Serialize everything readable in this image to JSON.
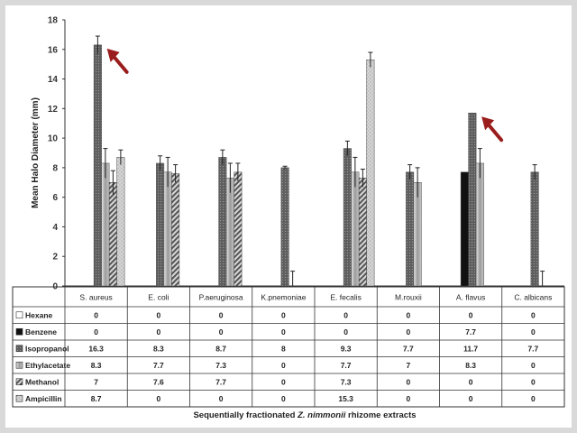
{
  "chart_data": {
    "type": "bar",
    "ylabel": "Mean Halo Diameter (mm)",
    "xlabel_parts": [
      "Sequentially fractionated ",
      "Z. nimmonii",
      " rhizome extracts"
    ],
    "ylim": [
      0,
      18
    ],
    "yticks": [
      0,
      2,
      4,
      6,
      8,
      10,
      12,
      14,
      16,
      18
    ],
    "categories": [
      "S. aureus",
      "E. coli",
      "P.aeruginosa",
      "K.pnemoniae",
      "E. fecalis",
      "M.rouxii",
      "A. flavus",
      "C. albicans"
    ],
    "series": [
      {
        "name": "Hexane",
        "values": [
          0,
          0,
          0,
          0,
          0,
          0,
          0,
          0
        ],
        "labels": [
          "0",
          "0",
          "0",
          "0",
          "0",
          "0",
          "0",
          "0"
        ],
        "color": "#ffffff"
      },
      {
        "name": "Benzene",
        "values": [
          0,
          0,
          0,
          0,
          0,
          0,
          7.7,
          0
        ],
        "labels": [
          "0",
          "0",
          "0",
          "0",
          "0",
          "0",
          "7.7",
          "0"
        ],
        "color": "#111111"
      },
      {
        "name": "Isopropanol",
        "values": [
          16.3,
          8.3,
          8.7,
          8,
          9.3,
          7.7,
          11.7,
          7.7
        ],
        "labels": [
          "16.3",
          "8.3",
          "8.7",
          "8",
          "9.3",
          "7.7",
          "11.7",
          "7.7"
        ],
        "color": "#6e6e6e"
      },
      {
        "name": "Ethylacetate",
        "values": [
          8.3,
          7.7,
          7.3,
          0,
          7.7,
          7,
          8.3,
          0
        ],
        "labels": [
          "8.3",
          "7.7",
          "7.3",
          "0",
          "7.7",
          "7",
          "8.3",
          "0"
        ],
        "color": "#a8a8a8"
      },
      {
        "name": "Methanol",
        "values": [
          7,
          7.6,
          7.7,
          0,
          7.3,
          0,
          0,
          0
        ],
        "labels": [
          "7",
          "7.6",
          "7.7",
          "0",
          "7.3",
          "0",
          "0",
          "0"
        ],
        "color": "#8a8a8a"
      },
      {
        "name": "Ampicillin",
        "values": [
          8.7,
          0,
          0,
          0,
          15.3,
          0,
          0,
          0
        ],
        "labels": [
          "8.7",
          "0",
          "0",
          "0",
          "15.3",
          "0",
          "0",
          "0"
        ],
        "color": "#cfcfcf"
      }
    ],
    "error_bars": [
      [
        0,
        0,
        0,
        0,
        0,
        0,
        0,
        0
      ],
      [
        0,
        0,
        0,
        0,
        0,
        0,
        0,
        0
      ],
      [
        0.6,
        0.5,
        0.5,
        0.1,
        0.5,
        0.5,
        0,
        0.5
      ],
      [
        1.0,
        1.0,
        1.0,
        1.0,
        1.0,
        1.0,
        1.0,
        1.0
      ],
      [
        0.8,
        0.6,
        0.6,
        0,
        0.6,
        0,
        0,
        0
      ],
      [
        0.5,
        0,
        0,
        0,
        0.5,
        0,
        0,
        0
      ]
    ],
    "arrows_on": [
      "S. aureus",
      "A. flavus"
    ],
    "arrow_color": "#9b1c1c",
    "grid": false
  }
}
